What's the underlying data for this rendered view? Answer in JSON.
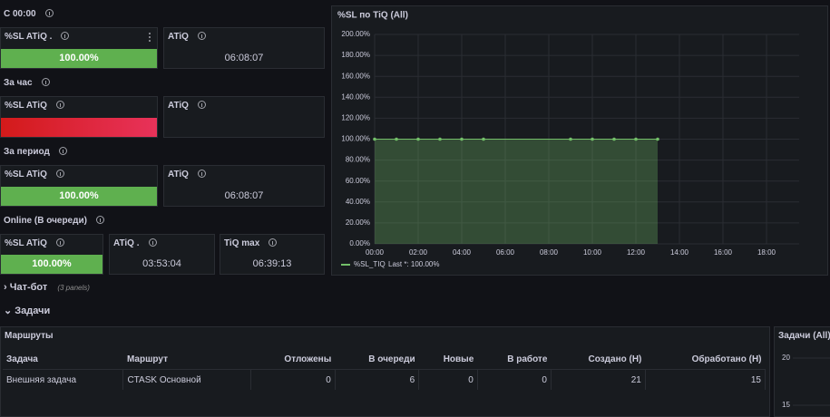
{
  "sections": [
    {
      "title": "С 00:00",
      "panels": [
        {
          "title": "%SL ATiQ .",
          "value": "100.00%"
        },
        {
          "title": "ATiQ",
          "value": "06:08:07"
        }
      ]
    },
    {
      "title": "За час",
      "panels": [
        {
          "title": "%SL ATiQ"
        },
        {
          "title": "ATiQ"
        }
      ]
    },
    {
      "title": "За период",
      "panels": [
        {
          "title": "%SL ATiQ",
          "value": "100.00%"
        },
        {
          "title": "ATiQ",
          "value": "06:08:07"
        }
      ]
    },
    {
      "title": "Online (В очереди)",
      "panels": [
        {
          "title": "%SL ATiQ",
          "value": "100.00%"
        },
        {
          "title": "ATiQ .",
          "value": "03:53:04"
        },
        {
          "title": "TiQ max",
          "value": "06:39:13"
        }
      ]
    }
  ],
  "chart_data": {
    "type": "area",
    "title": "%SL по TiQ (All)",
    "x": [
      0,
      1,
      2,
      3,
      4,
      5,
      9,
      10,
      11,
      12,
      13
    ],
    "series": [
      {
        "name": "%SL_TIQ",
        "color": "#73bf69",
        "values": [
          100,
          100,
          100,
          100,
          100,
          100,
          100,
          100,
          100,
          100,
          100
        ]
      }
    ],
    "legend_text": "Last *: 100.00%",
    "xlim": [
      0,
      19.5
    ],
    "xticks": [
      {
        "value": 0,
        "label": "00:00"
      },
      {
        "value": 2,
        "label": "02:00"
      },
      {
        "value": 4,
        "label": "04:00"
      },
      {
        "value": 6,
        "label": "06:00"
      },
      {
        "value": 8,
        "label": "08:00"
      },
      {
        "value": 10,
        "label": "10:00"
      },
      {
        "value": 12,
        "label": "12:00"
      },
      {
        "value": 14,
        "label": "14:00"
      },
      {
        "value": 16,
        "label": "16:00"
      },
      {
        "value": 18,
        "label": "18:00"
      }
    ],
    "ylim": [
      0,
      200
    ],
    "yticks": [
      {
        "value": 0,
        "label": "0.00%"
      },
      {
        "value": 20,
        "label": "20.00%"
      },
      {
        "value": 40,
        "label": "40.00%"
      },
      {
        "value": 60,
        "label": "60.00%"
      },
      {
        "value": 80,
        "label": "80.00%"
      },
      {
        "value": 100,
        "label": "100.00%"
      },
      {
        "value": 120,
        "label": "120.00%"
      },
      {
        "value": 140,
        "label": "140.00%"
      },
      {
        "value": 160,
        "label": "160.00%"
      },
      {
        "value": 180,
        "label": "180.00%"
      },
      {
        "value": 200,
        "label": "200.00%"
      }
    ],
    "grid": true
  },
  "rows": [
    {
      "title": "Чат-бот",
      "note": "(3 panels)"
    },
    {
      "title": "Задачи"
    }
  ],
  "table": {
    "title": "Маршруты",
    "columns": [
      "Задача",
      "Маршрут",
      "Отложены",
      "В очереди",
      "Новые",
      "В работе",
      "Создано (Н)",
      "Обработано (Н)"
    ],
    "rows": [
      [
        "Внешняя задача",
        "CTASK Основной",
        0,
        6,
        0,
        0,
        21,
        15
      ]
    ]
  },
  "side_panel": {
    "title": "Задачи (All)",
    "yticks": [
      20,
      15
    ]
  }
}
